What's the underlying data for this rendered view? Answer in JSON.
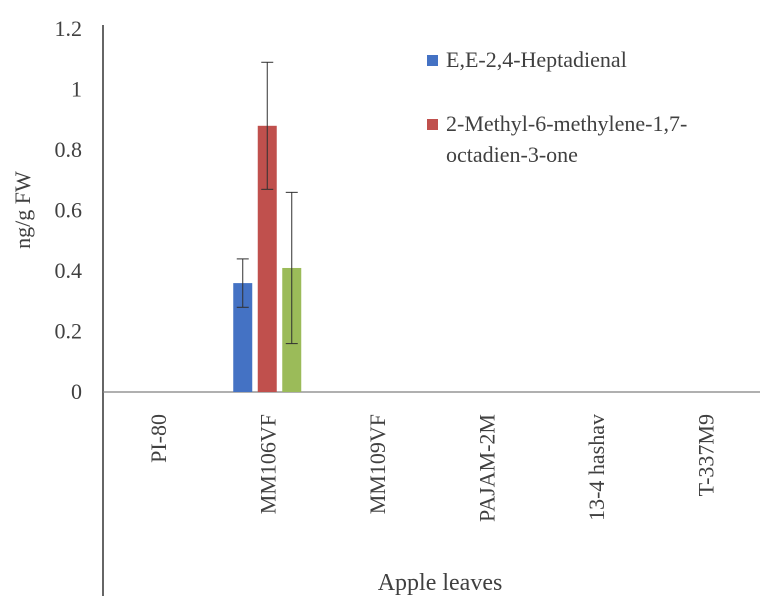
{
  "chart_data": {
    "type": "bar",
    "title": "",
    "xlabel": "Apple leaves",
    "ylabel": "ng/g FW",
    "ylim": [
      0,
      1.2
    ],
    "yticks": [
      0,
      0.2,
      0.4,
      0.6,
      0.8,
      1,
      1.2
    ],
    "ytick_labels": [
      "0",
      "0.2",
      "0.4",
      "0.6",
      "0.8",
      "1",
      "1.2"
    ],
    "grid": false,
    "legend_position": "top-right",
    "categories": [
      "PI-80",
      "MM106VF",
      "MM109VF",
      "PAJAM-2M",
      "13-4 hashav",
      "T-337M9"
    ],
    "series": [
      {
        "name": "E,E-2,4-Heptadienal",
        "color": "#4472C4",
        "values": [
          0,
          0.36,
          0,
          0,
          0,
          0
        ],
        "errors": [
          0,
          0.08,
          0,
          0,
          0,
          0
        ]
      },
      {
        "name": "2-Methyl-6-methylene-1,7-octadien-3-one",
        "color": "#C0504D",
        "values": [
          0,
          0.88,
          0,
          0,
          0,
          0
        ],
        "errors": [
          0,
          0.21,
          0,
          0,
          0,
          0
        ]
      },
      {
        "name": "",
        "color": "#9BBB59",
        "values": [
          0,
          0.41,
          0,
          0,
          0,
          0
        ],
        "errors": [
          0,
          0.25,
          0,
          0,
          0,
          0
        ]
      }
    ],
    "legend_lines": [
      [
        "E,E-2,4-Heptadienal"
      ],
      [
        "2-Methyl-6-methylene-1,7-",
        "octadien-3-one"
      ]
    ]
  }
}
